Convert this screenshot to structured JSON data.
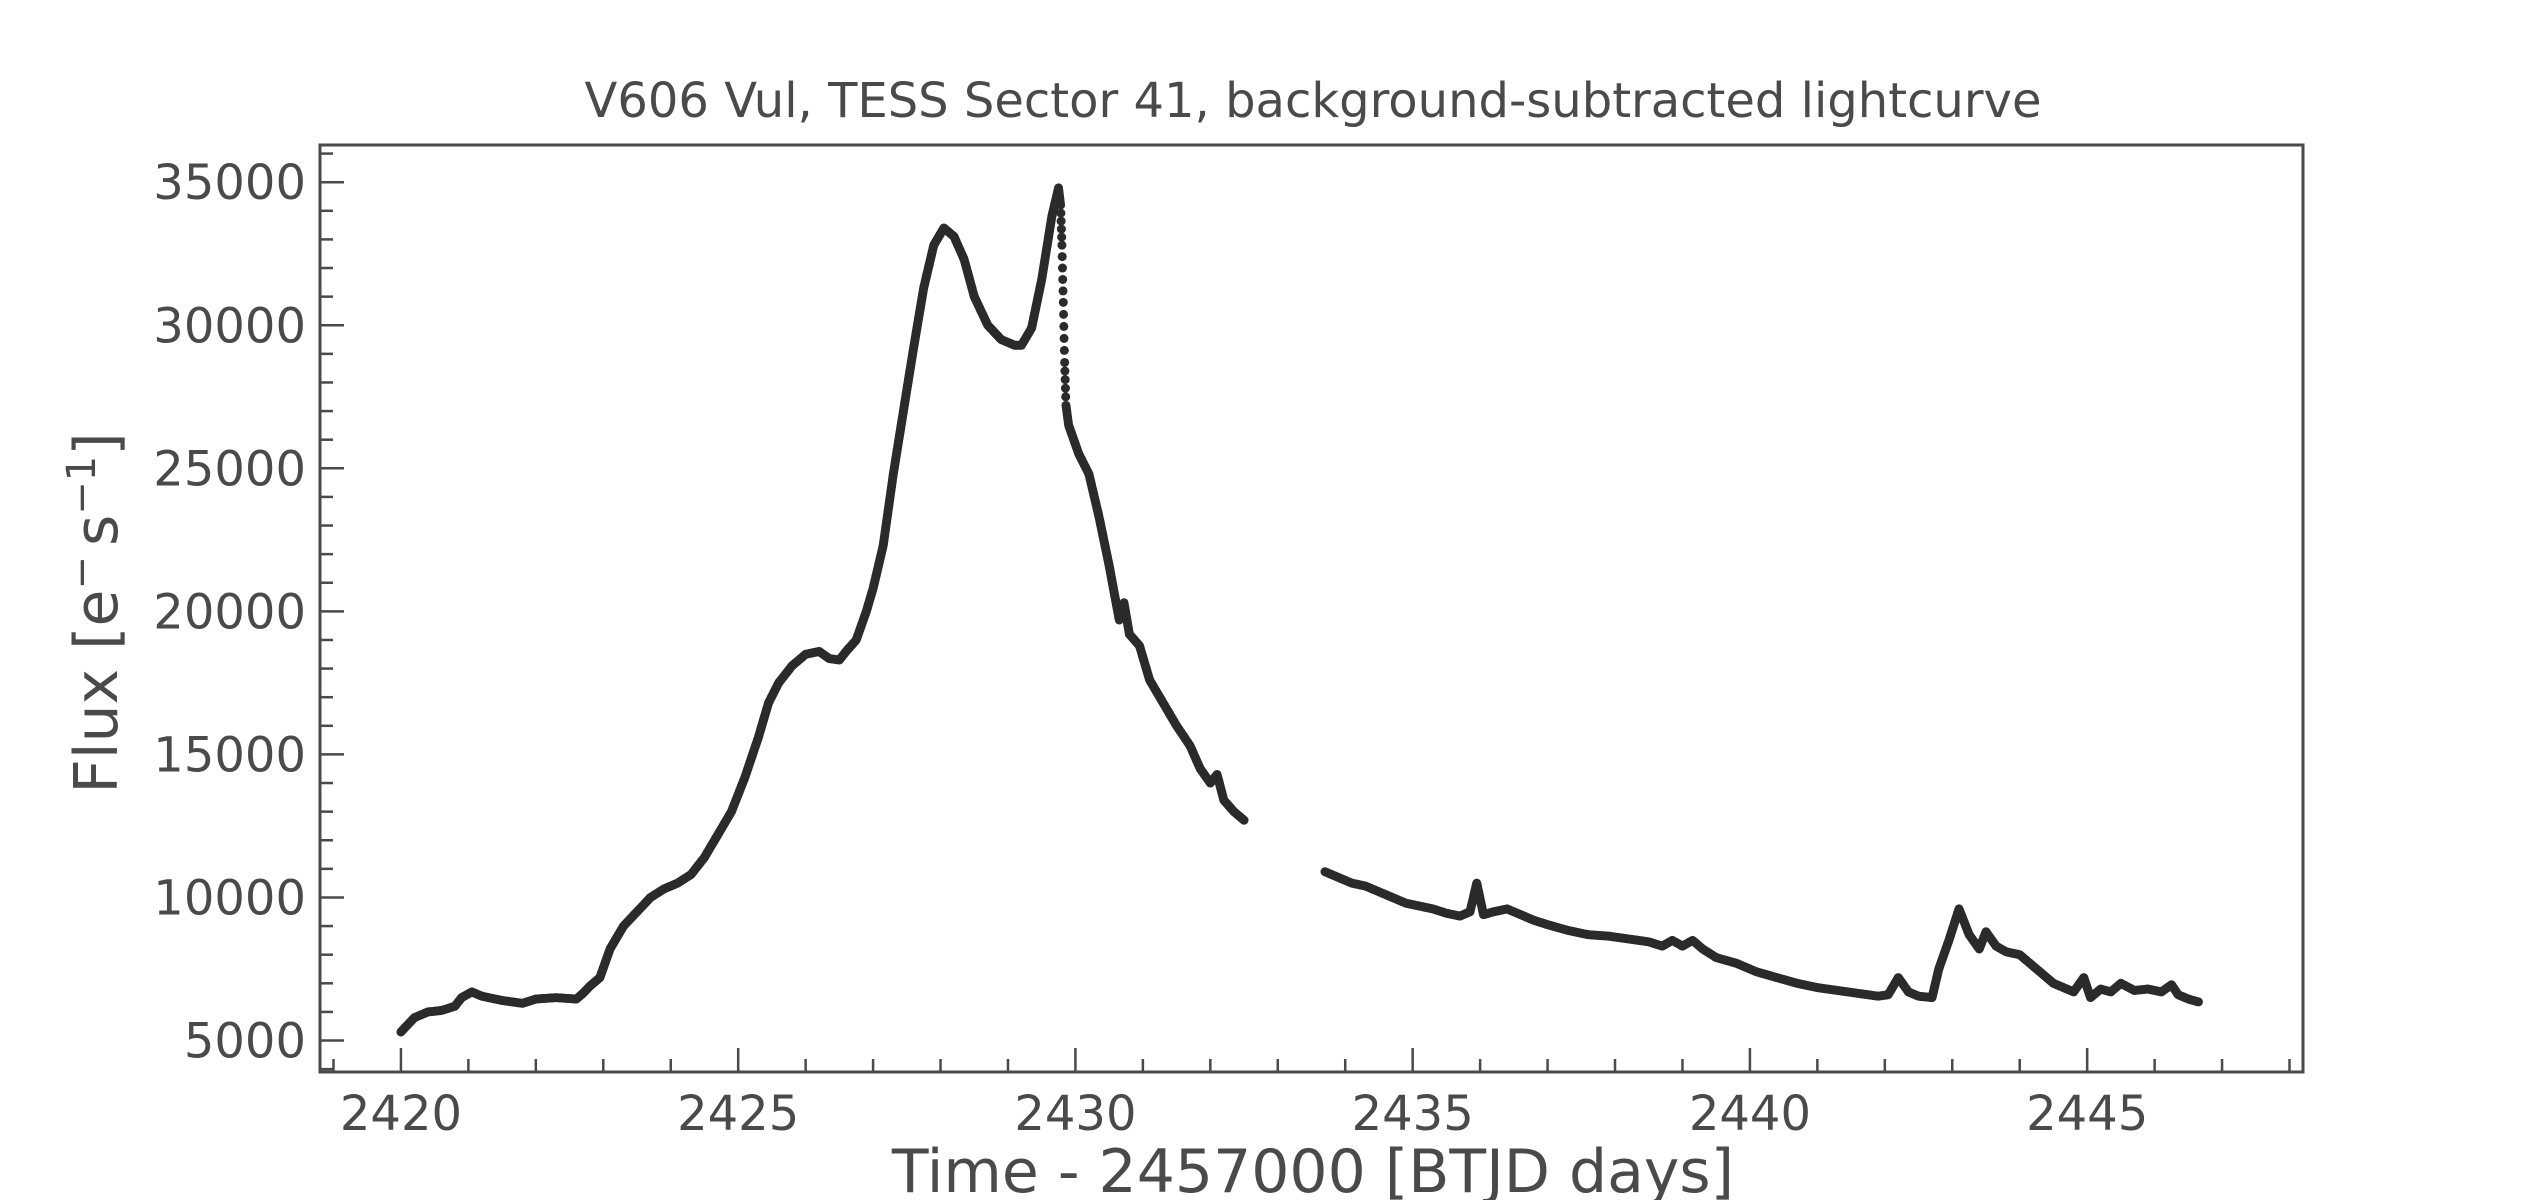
{
  "chart_data": {
    "type": "scatter",
    "title": "V606 Vul, TESS Sector 41, background-subtracted lightcurve",
    "xlabel": "Time - 2457000 [BTJD days]",
    "ylabel_base": "Flux [e",
    "ylabel_sup": "−",
    "ylabel_mid": "s",
    "ylabel_sup2": "−1",
    "ylabel_end": "]",
    "xlim": [
      2418.8,
      2448.2
    ],
    "ylim": [
      3900,
      36300
    ],
    "x_ticks": [
      2420,
      2425,
      2430,
      2435,
      2440,
      2445
    ],
    "x_tick_labels": [
      "2420",
      "2425",
      "2430",
      "2435",
      "2440",
      "2445"
    ],
    "y_ticks": [
      5000,
      10000,
      15000,
      20000,
      25000,
      30000,
      35000
    ],
    "y_tick_labels": [
      "5000",
      "10000",
      "15000",
      "20000",
      "25000",
      "30000",
      "35000"
    ],
    "grid": false,
    "legend": "none",
    "marker_color": "#2b2b2b",
    "segments": [
      {
        "name": "",
        "points": [
          [
            2420.0,
            5300
          ],
          [
            2420.2,
            5800
          ],
          [
            2420.4,
            6000
          ],
          [
            2420.6,
            6050
          ],
          [
            2420.8,
            6200
          ],
          [
            2420.9,
            6500
          ],
          [
            2421.05,
            6700
          ],
          [
            2421.2,
            6550
          ],
          [
            2421.5,
            6400
          ],
          [
            2421.8,
            6300
          ],
          [
            2422.0,
            6450
          ],
          [
            2422.3,
            6500
          ],
          [
            2422.6,
            6450
          ],
          [
            2422.7,
            6650
          ],
          [
            2422.8,
            6900
          ],
          [
            2422.95,
            7200
          ],
          [
            2423.1,
            8200
          ],
          [
            2423.3,
            9000
          ],
          [
            2423.5,
            9500
          ],
          [
            2423.7,
            10000
          ],
          [
            2423.9,
            10300
          ],
          [
            2424.1,
            10500
          ],
          [
            2424.3,
            10800
          ],
          [
            2424.5,
            11400
          ],
          [
            2424.7,
            12200
          ],
          [
            2424.9,
            13000
          ],
          [
            2425.1,
            14200
          ],
          [
            2425.3,
            15600
          ],
          [
            2425.45,
            16800
          ],
          [
            2425.6,
            17500
          ],
          [
            2425.8,
            18100
          ],
          [
            2426.0,
            18500
          ],
          [
            2426.2,
            18600
          ],
          [
            2426.35,
            18350
          ],
          [
            2426.5,
            18300
          ],
          [
            2426.6,
            18600
          ],
          [
            2426.75,
            19000
          ],
          [
            2426.9,
            20000
          ],
          [
            2427.0,
            20800
          ],
          [
            2427.15,
            22300
          ],
          [
            2427.3,
            24800
          ],
          [
            2427.45,
            27000
          ],
          [
            2427.6,
            29200
          ],
          [
            2427.75,
            31300
          ],
          [
            2427.9,
            32800
          ],
          [
            2428.05,
            33400
          ],
          [
            2428.2,
            33100
          ],
          [
            2428.35,
            32300
          ],
          [
            2428.5,
            31000
          ],
          [
            2428.7,
            30000
          ],
          [
            2428.9,
            29500
          ],
          [
            2429.1,
            29300
          ],
          [
            2429.2,
            29300
          ],
          [
            2429.35,
            29900
          ],
          [
            2429.5,
            31600
          ],
          [
            2429.65,
            33800
          ],
          [
            2429.75,
            34800
          ],
          [
            2429.78,
            34200
          ],
          [
            2429.8,
            32800
          ],
          [
            2429.82,
            30800
          ],
          [
            2429.84,
            28700
          ],
          [
            2429.86,
            27200
          ],
          [
            2429.9,
            26500
          ],
          [
            2430.05,
            25500
          ],
          [
            2430.2,
            24800
          ],
          [
            2430.35,
            23300
          ],
          [
            2430.5,
            21600
          ],
          [
            2430.65,
            19700
          ],
          [
            2430.72,
            20300
          ],
          [
            2430.8,
            19200
          ],
          [
            2430.95,
            18800
          ],
          [
            2431.1,
            17600
          ],
          [
            2431.3,
            16800
          ],
          [
            2431.5,
            16000
          ],
          [
            2431.7,
            15300
          ],
          [
            2431.85,
            14500
          ],
          [
            2432.0,
            14000
          ],
          [
            2432.1,
            14300
          ],
          [
            2432.2,
            13400
          ],
          [
            2432.35,
            13000
          ],
          [
            2432.5,
            12700
          ]
        ]
      },
      {
        "name": "",
        "points": [
          [
            2433.7,
            10900
          ],
          [
            2433.9,
            10700
          ],
          [
            2434.1,
            10500
          ],
          [
            2434.3,
            10400
          ],
          [
            2434.5,
            10200
          ],
          [
            2434.7,
            10000
          ],
          [
            2434.9,
            9800
          ],
          [
            2435.1,
            9700
          ],
          [
            2435.3,
            9600
          ],
          [
            2435.5,
            9450
          ],
          [
            2435.7,
            9350
          ],
          [
            2435.85,
            9500
          ],
          [
            2435.95,
            10500
          ],
          [
            2436.05,
            9400
          ],
          [
            2436.2,
            9500
          ],
          [
            2436.4,
            9600
          ],
          [
            2436.6,
            9400
          ],
          [
            2436.8,
            9200
          ],
          [
            2437.0,
            9050
          ],
          [
            2437.3,
            8850
          ],
          [
            2437.6,
            8700
          ],
          [
            2437.9,
            8650
          ],
          [
            2438.2,
            8550
          ],
          [
            2438.5,
            8450
          ],
          [
            2438.7,
            8300
          ],
          [
            2438.85,
            8500
          ],
          [
            2439.0,
            8300
          ],
          [
            2439.15,
            8500
          ],
          [
            2439.3,
            8200
          ],
          [
            2439.5,
            7900
          ],
          [
            2439.8,
            7700
          ],
          [
            2440.1,
            7400
          ],
          [
            2440.4,
            7200
          ],
          [
            2440.7,
            7000
          ],
          [
            2441.0,
            6850
          ],
          [
            2441.3,
            6750
          ],
          [
            2441.6,
            6650
          ],
          [
            2441.9,
            6550
          ],
          [
            2442.05,
            6600
          ],
          [
            2442.2,
            7200
          ],
          [
            2442.35,
            6700
          ],
          [
            2442.5,
            6550
          ],
          [
            2442.7,
            6500
          ],
          [
            2442.8,
            7500
          ],
          [
            2442.95,
            8500
          ],
          [
            2443.1,
            9600
          ],
          [
            2443.25,
            8700
          ],
          [
            2443.4,
            8200
          ],
          [
            2443.5,
            8800
          ],
          [
            2443.65,
            8300
          ],
          [
            2443.8,
            8100
          ],
          [
            2444.0,
            8000
          ],
          [
            2444.15,
            7700
          ],
          [
            2444.3,
            7400
          ],
          [
            2444.5,
            7000
          ],
          [
            2444.7,
            6800
          ],
          [
            2444.8,
            6700
          ],
          [
            2444.95,
            7200
          ],
          [
            2445.05,
            6500
          ],
          [
            2445.2,
            6800
          ],
          [
            2445.35,
            6700
          ],
          [
            2445.5,
            7000
          ],
          [
            2445.7,
            6750
          ],
          [
            2445.9,
            6800
          ],
          [
            2446.1,
            6700
          ],
          [
            2446.25,
            6950
          ],
          [
            2446.35,
            6600
          ],
          [
            2446.5,
            6450
          ],
          [
            2446.65,
            6350
          ]
        ]
      }
    ]
  }
}
